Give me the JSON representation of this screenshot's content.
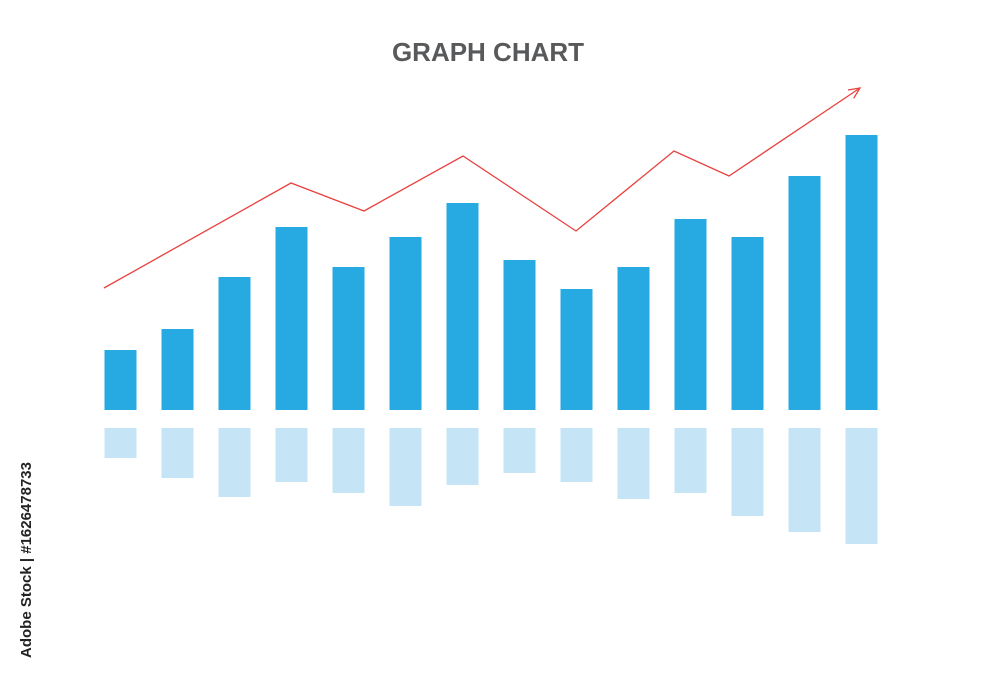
{
  "chart_data": {
    "type": "bar",
    "title": "GRAPH CHART",
    "series": [
      {
        "color": "#27a9e1",
        "values": [
          60,
          81,
          133,
          183,
          143,
          173,
          207,
          150,
          121,
          143,
          191,
          173,
          234,
          275
        ]
      },
      {
        "color": "#c5e5f7",
        "values": [
          30,
          50,
          69,
          54,
          65,
          78,
          57,
          45,
          54,
          71,
          65,
          88,
          104,
          116
        ]
      }
    ],
    "trend": {
      "color": "#e8413e",
      "x": [
        104,
        291,
        364,
        463,
        576,
        674,
        729,
        860
      ],
      "values": [
        122,
        227,
        199,
        254,
        179,
        259,
        234,
        322
      ]
    },
    "xlim": [
      0,
      1000
    ],
    "ylim": [
      0,
      350
    ],
    "watermark": "Adobe Stock | #1626478733"
  }
}
